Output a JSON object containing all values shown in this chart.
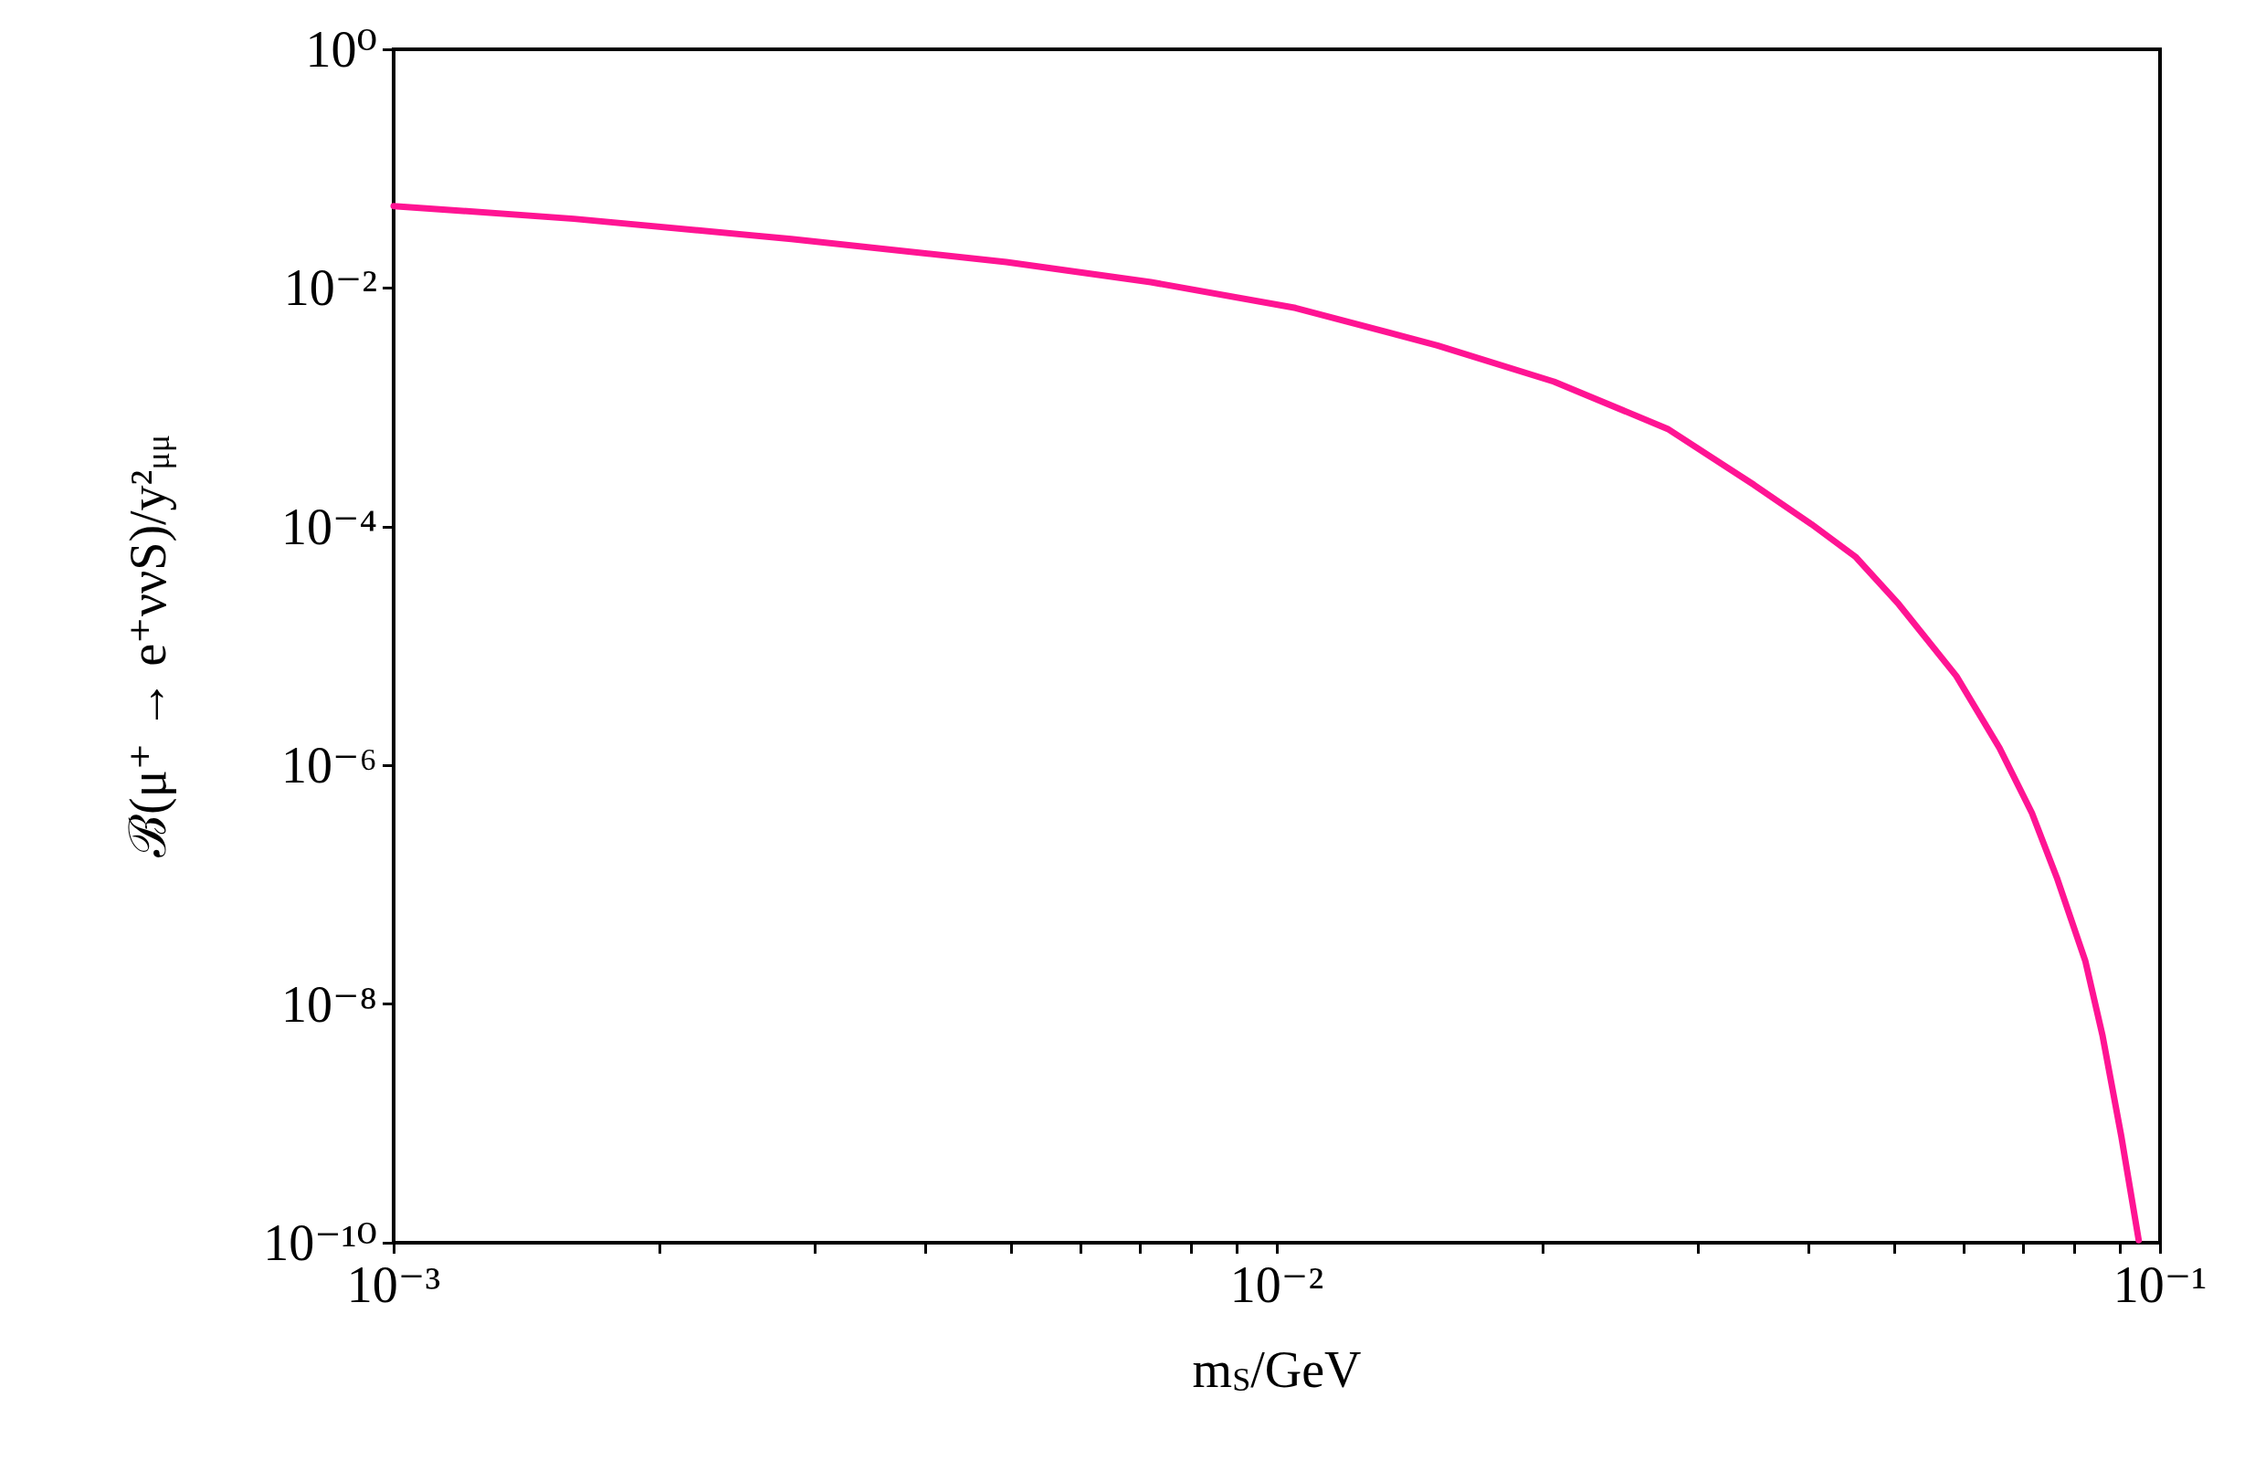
{
  "chart_data": {
    "type": "line",
    "xlabel": "m$_{S}$/GeV",
    "ylabel": "ℬ(μ⁺ → e⁺ννS)/y²$_{μμ}$",
    "log": "xy",
    "grid": false,
    "marker": "none",
    "line_style": "solid",
    "xlim": [
      0.001,
      0.1
    ],
    "ylim": [
      1e-10,
      1
    ],
    "xticks": [
      {
        "value": 0.001,
        "label": "10⁻³"
      },
      {
        "value": 0.002,
        "label": null
      },
      {
        "value": 0.003,
        "label": null
      },
      {
        "value": 0.004,
        "label": null
      },
      {
        "value": 0.005,
        "label": null
      },
      {
        "value": 0.006,
        "label": null
      },
      {
        "value": 0.007,
        "label": null
      },
      {
        "value": 0.008,
        "label": null
      },
      {
        "value": 0.009,
        "label": null
      },
      {
        "value": 0.01,
        "label": "10⁻²"
      },
      {
        "value": 0.02,
        "label": null
      },
      {
        "value": 0.03,
        "label": null
      },
      {
        "value": 0.04,
        "label": null
      },
      {
        "value": 0.05,
        "label": null
      },
      {
        "value": 0.06,
        "label": null
      },
      {
        "value": 0.07,
        "label": null
      },
      {
        "value": 0.08,
        "label": null
      },
      {
        "value": 0.09,
        "label": null
      },
      {
        "value": 0.1,
        "label": "10⁻¹"
      }
    ],
    "yticks": [
      {
        "value": 1e-10,
        "label": "10⁻¹⁰"
      },
      {
        "value": 1e-08,
        "label": "10⁻⁸"
      },
      {
        "value": 1e-06,
        "label": "10⁻⁶"
      },
      {
        "value": 0.0001,
        "label": "10⁻⁴"
      },
      {
        "value": 0.01,
        "label": "10⁻²"
      },
      {
        "value": 1,
        "label": "10⁰"
      }
    ],
    "series": [
      {
        "color": "#ff1493",
        "x": [
          0.001,
          0.0016,
          0.00282,
          0.00494,
          0.0072,
          0.0105,
          0.0152,
          0.0206,
          0.0277,
          0.0347,
          0.0403,
          0.0452,
          0.0506,
          0.0588,
          0.0658,
          0.0716,
          0.0764,
          0.0823,
          0.0861,
          0.0904,
          0.0946
        ],
        "values": [
          0.0486,
          0.038,
          0.0257,
          0.0165,
          0.0112,
          0.0068,
          0.0033,
          0.00164,
          0.00066,
          0.000224,
          0.000105,
          5.6e-05,
          2.24e-05,
          5.6e-06,
          1.4e-06,
          4e-07,
          1.15e-07,
          2.3e-08,
          5.4e-09,
          7.8e-10,
          1.05e-10
        ]
      }
    ]
  }
}
